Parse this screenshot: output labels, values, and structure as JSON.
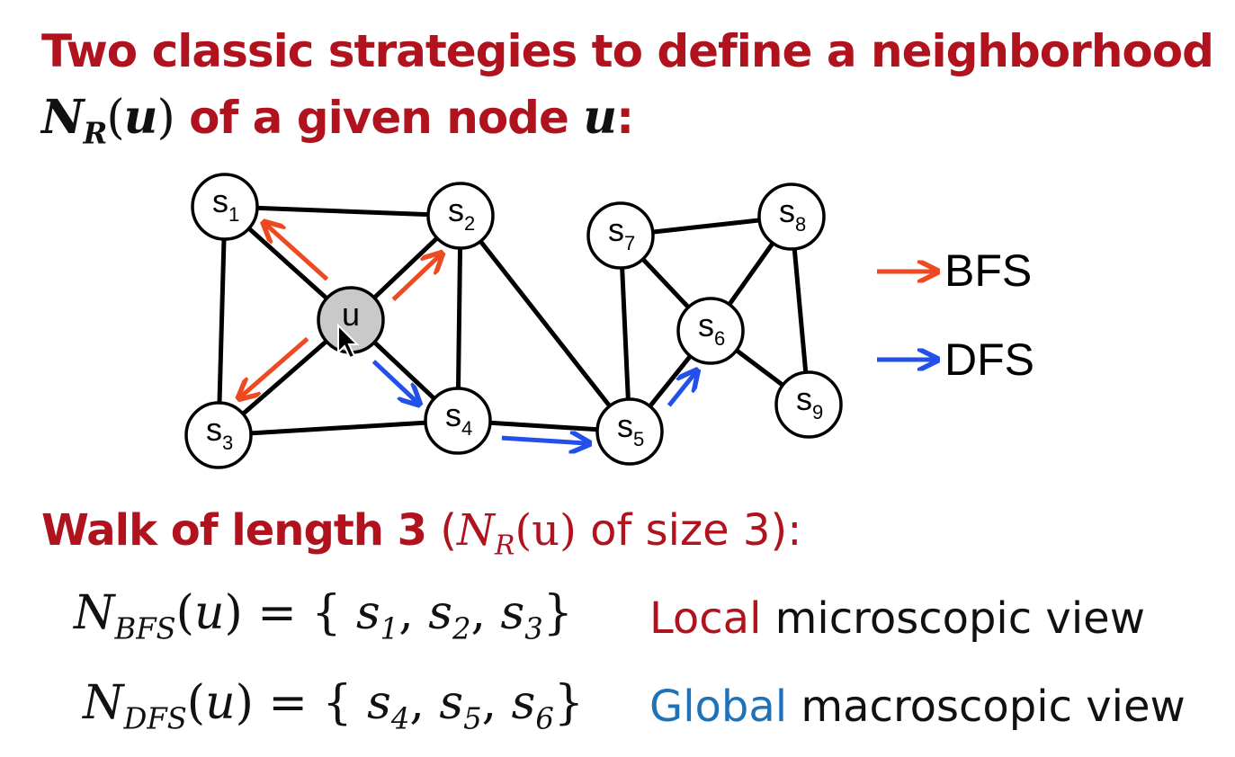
{
  "title": {
    "line1": "Two classic strategies to define a neighborhood",
    "line2_math_N": "N",
    "line2_math_sub": "R",
    "line2_math_arg": "(u)",
    "line2_text": " of a given node ",
    "line2_var": "u",
    "line2_end": ":"
  },
  "graph": {
    "nodes": [
      {
        "id": "s1",
        "letter": "s",
        "sub": "1"
      },
      {
        "id": "s2",
        "letter": "s",
        "sub": "2"
      },
      {
        "id": "s3",
        "letter": "s",
        "sub": "3"
      },
      {
        "id": "u",
        "letter": "u",
        "sub": ""
      },
      {
        "id": "s4",
        "letter": "s",
        "sub": "4"
      },
      {
        "id": "s5",
        "letter": "s",
        "sub": "5"
      },
      {
        "id": "s6",
        "letter": "s",
        "sub": "6"
      },
      {
        "id": "s7",
        "letter": "s",
        "sub": "7"
      },
      {
        "id": "s8",
        "letter": "s",
        "sub": "8"
      },
      {
        "id": "s9",
        "letter": "s",
        "sub": "9"
      }
    ],
    "edges": [
      [
        "s1",
        "s2"
      ],
      [
        "s1",
        "s3"
      ],
      [
        "s1",
        "u"
      ],
      [
        "u",
        "s2"
      ],
      [
        "u",
        "s3"
      ],
      [
        "u",
        "s4"
      ],
      [
        "s2",
        "s4"
      ],
      [
        "s2",
        "s5"
      ],
      [
        "s3",
        "s4"
      ],
      [
        "s4",
        "s5"
      ],
      [
        "s5",
        "s7"
      ],
      [
        "s5",
        "s6"
      ],
      [
        "s7",
        "s6"
      ],
      [
        "s7",
        "s8"
      ],
      [
        "s8",
        "s6"
      ],
      [
        "s8",
        "s9"
      ],
      [
        "s6",
        "s9"
      ]
    ],
    "bfs_arrows": [
      [
        "u",
        "s1"
      ],
      [
        "u",
        "s2"
      ],
      [
        "u",
        "s3"
      ]
    ],
    "dfs_arrows": [
      [
        "u",
        "s4"
      ],
      [
        "s4",
        "s5"
      ],
      [
        "s5",
        "s6"
      ]
    ],
    "colors": {
      "bfs": "#ee4a22",
      "dfs": "#2250e8",
      "node_center": "#c9c9c9"
    }
  },
  "legend": {
    "bfs": "BFS",
    "dfs": "DFS"
  },
  "walk": {
    "bold": "Walk of length 3",
    "open": " (",
    "N": "N",
    "sub": "R",
    "arg": "(u)",
    "rest": " of size 3):"
  },
  "bfs_eq": {
    "N": "N",
    "sub": "BFS",
    "arg": "(u)",
    "eq": " = { ",
    "items": [
      {
        "s": "s",
        "sub": "1",
        "sep": ", "
      },
      {
        "s": "s",
        "sub": "2",
        "sep": ", "
      },
      {
        "s": "s",
        "sub": "3",
        "sep": ""
      }
    ],
    "close": "}",
    "word_colored": "Local",
    "word_rest": " microscopic view"
  },
  "dfs_eq": {
    "N": "N",
    "sub": "DFS",
    "arg": "(u)",
    "eq": " = { ",
    "items": [
      {
        "s": "s",
        "sub": "4",
        "sep": ", "
      },
      {
        "s": "s",
        "sub": "5",
        "sep": ", "
      },
      {
        "s": "s",
        "sub": "6",
        "sep": ""
      }
    ],
    "close": "}",
    "word_colored": "Global",
    "word_rest": " macroscopic view"
  }
}
